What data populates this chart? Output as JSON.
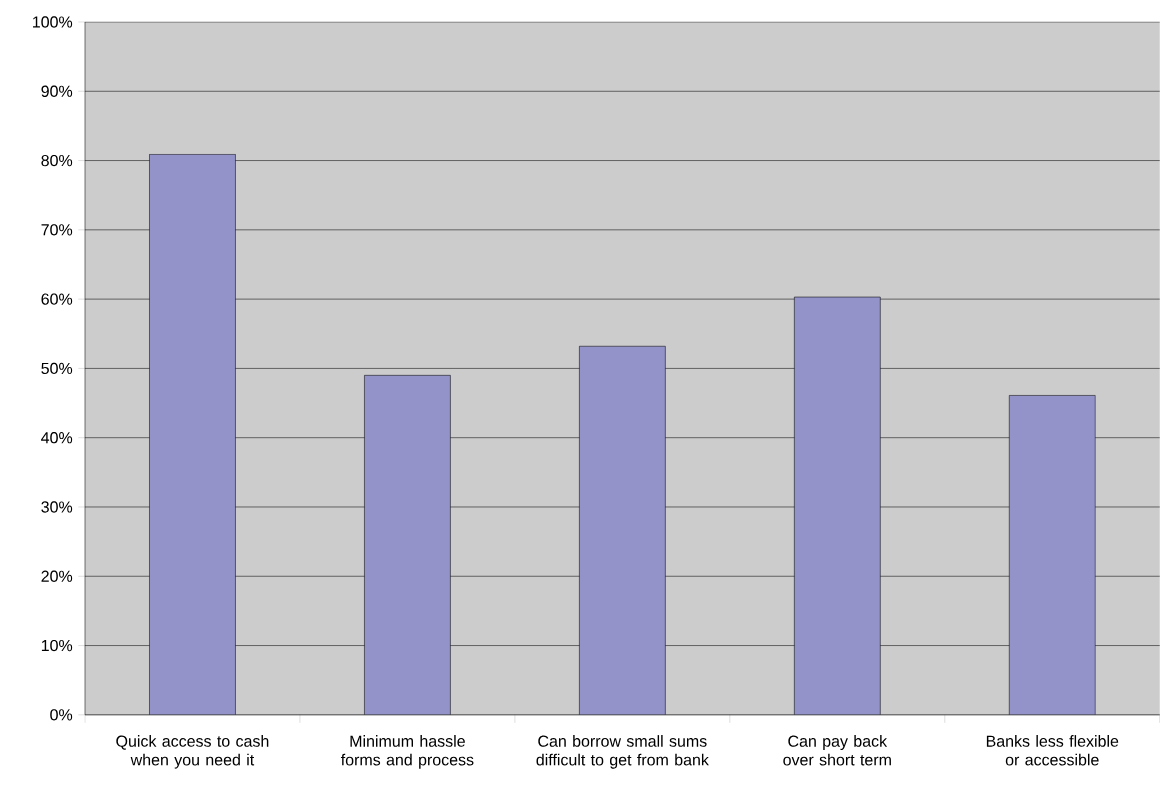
{
  "chart_data": {
    "type": "bar",
    "categories": [
      "Quick access to cash when you need it",
      "Minimum hassle forms and process",
      "Can borrow small sums difficult to get from bank",
      "Can pay back over short term",
      "Banks less flexible or accessible"
    ],
    "values": [
      80.9,
      49.0,
      53.2,
      60.3,
      46.1
    ],
    "color": "#9393c9",
    "ylim": [
      0,
      100
    ],
    "yticks": [
      {
        "value": 0,
        "label": "0%"
      },
      {
        "value": 10,
        "label": "10%"
      },
      {
        "value": 20,
        "label": "20%"
      },
      {
        "value": 30,
        "label": "30%"
      },
      {
        "value": 40,
        "label": "40%"
      },
      {
        "value": 50,
        "label": "50%"
      },
      {
        "value": 60,
        "label": "60%"
      },
      {
        "value": 70,
        "label": "70%"
      },
      {
        "value": 80,
        "label": "80%"
      },
      {
        "value": 90,
        "label": "90%"
      },
      {
        "value": 100,
        "label": "100%"
      }
    ],
    "grid": "y"
  }
}
